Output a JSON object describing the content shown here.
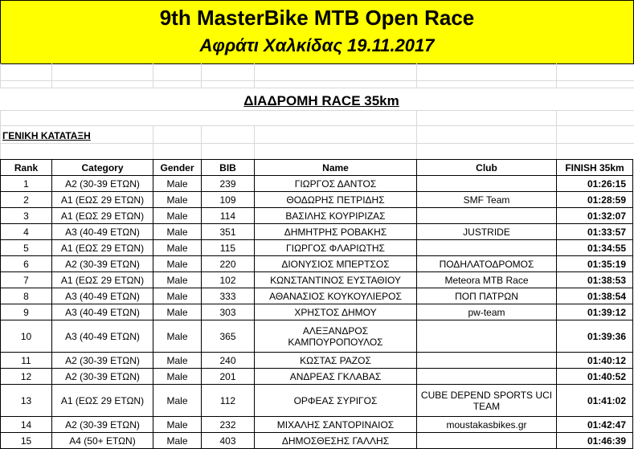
{
  "header": {
    "title": "9th MasterBike MTB Open Race",
    "subtitle": "Αφράτι Χαλκίδας 19.11.2017"
  },
  "route_title": "ΔΙΑΔΡΟΜΗ RACE 35km",
  "section_label": "ΓΕΝΙΚΗ ΚΑΤΑΤΑΞΗ",
  "columns": {
    "rank": "Rank",
    "category": "Category",
    "gender": "Gender",
    "bib": "BIB",
    "name": "Name",
    "club": "Club",
    "finish": "FINISH 35km"
  },
  "rows": [
    {
      "rank": "1",
      "category": "Α2 (30-39 ΕΤΩΝ)",
      "gender": "Male",
      "bib": "239",
      "name": "ΓΙΩΡΓΟΣ ΔΑΝΤΟΣ",
      "club": "",
      "finish": "01:26:15"
    },
    {
      "rank": "2",
      "category": "Α1 (ΕΩΣ 29 ΕΤΩΝ)",
      "gender": "Male",
      "bib": "109",
      "name": "ΘΟΔΩΡΗΣ ΠΕΤΡΙΔΗΣ",
      "club": "SMF Team",
      "finish": "01:28:59"
    },
    {
      "rank": "3",
      "category": "Α1 (ΕΩΣ 29 ΕΤΩΝ)",
      "gender": "Male",
      "bib": "114",
      "name": "ΒΑΣΙΛΗΣ ΚΟΥΡΙΡΙΖΑΣ",
      "club": "",
      "finish": "01:32:07"
    },
    {
      "rank": "4",
      "category": "Α3 (40-49 ΕΤΩΝ)",
      "gender": "Male",
      "bib": "351",
      "name": "ΔΗΜΗΤΡΗΣ ΡΟΒΑΚΗΣ",
      "club": "JUSTRIDE",
      "finish": "01:33:57"
    },
    {
      "rank": "5",
      "category": "Α1 (ΕΩΣ 29 ΕΤΩΝ)",
      "gender": "Male",
      "bib": "115",
      "name": "ΓΙΩΡΓΟΣ ΦΛΑΡΙΩΤΗΣ",
      "club": "",
      "finish": "01:34:55"
    },
    {
      "rank": "6",
      "category": "Α2 (30-39 ΕΤΩΝ)",
      "gender": "Male",
      "bib": "220",
      "name": "ΔΙΟΝΥΣΙΟΣ ΜΠΕΡΤΣΟΣ",
      "club": "ΠΟΔΗΛΑΤΟΔΡΟΜΟΣ",
      "finish": "01:35:19"
    },
    {
      "rank": "7",
      "category": "Α1 (ΕΩΣ 29 ΕΤΩΝ)",
      "gender": "Male",
      "bib": "102",
      "name": "ΚΩΝΣΤΑΝΤΙΝΟΣ ΕΥΣΤΑΘΙΟΥ",
      "club": "Meteora MTB Race",
      "finish": "01:38:53"
    },
    {
      "rank": "8",
      "category": "Α3 (40-49 ΕΤΩΝ)",
      "gender": "Male",
      "bib": "333",
      "name": "ΑΘΑΝΑΣΙΟΣ ΚΟΥΚΟΥΛΙΕΡΟΣ",
      "club": "ΠΟΠ ΠΑΤΡΩΝ",
      "finish": "01:38:54"
    },
    {
      "rank": "9",
      "category": "Α3 (40-49 ΕΤΩΝ)",
      "gender": "Male",
      "bib": "303",
      "name": "ΧΡΗΣΤΟΣ ΔΗΜΟΥ",
      "club": "pw-team",
      "finish": "01:39:12"
    },
    {
      "rank": "10",
      "category": "Α3 (40-49 ΕΤΩΝ)",
      "gender": "Male",
      "bib": "365",
      "name": "ΑΛΕΞΑΝΔΡΟΣ ΚΑΜΠΟΥΡΟΠΟΥΛΟΣ",
      "club": "",
      "finish": "01:39:36",
      "tall": true
    },
    {
      "rank": "11",
      "category": "Α2 (30-39 ΕΤΩΝ)",
      "gender": "Male",
      "bib": "240",
      "name": "ΚΩΣΤΑΣ ΡΑΖΟΣ",
      "club": "",
      "finish": "01:40:12"
    },
    {
      "rank": "12",
      "category": "Α2 (30-39 ΕΤΩΝ)",
      "gender": "Male",
      "bib": "201",
      "name": "ΑΝΔΡΕΑΣ ΓΚΛΑΒΑΣ",
      "club": "",
      "finish": "01:40:52"
    },
    {
      "rank": "13",
      "category": "Α1 (ΕΩΣ 29 ΕΤΩΝ)",
      "gender": "Male",
      "bib": "112",
      "name": "ΟΡΦΕΑΣ ΣΥΡΙΓΟΣ",
      "club": "CUBE DEPEND SPORTS UCI TEAM",
      "finish": "01:41:02",
      "tall": true
    },
    {
      "rank": "14",
      "category": "Α2 (30-39 ΕΤΩΝ)",
      "gender": "Male",
      "bib": "232",
      "name": "ΜΙΧΑΛΗΣ ΣΑΝΤΟΡΙΝΑΙΟΣ",
      "club": "moustakasbikes.gr",
      "finish": "01:42:47"
    },
    {
      "rank": "15",
      "category": "Α4 (50+ ΕΤΩΝ)",
      "gender": "Male",
      "bib": "403",
      "name": "ΔΗΜΟΣΘΕΣΗΣ ΓΑΛΛΗΣ",
      "club": "",
      "finish": "01:46:39"
    }
  ]
}
